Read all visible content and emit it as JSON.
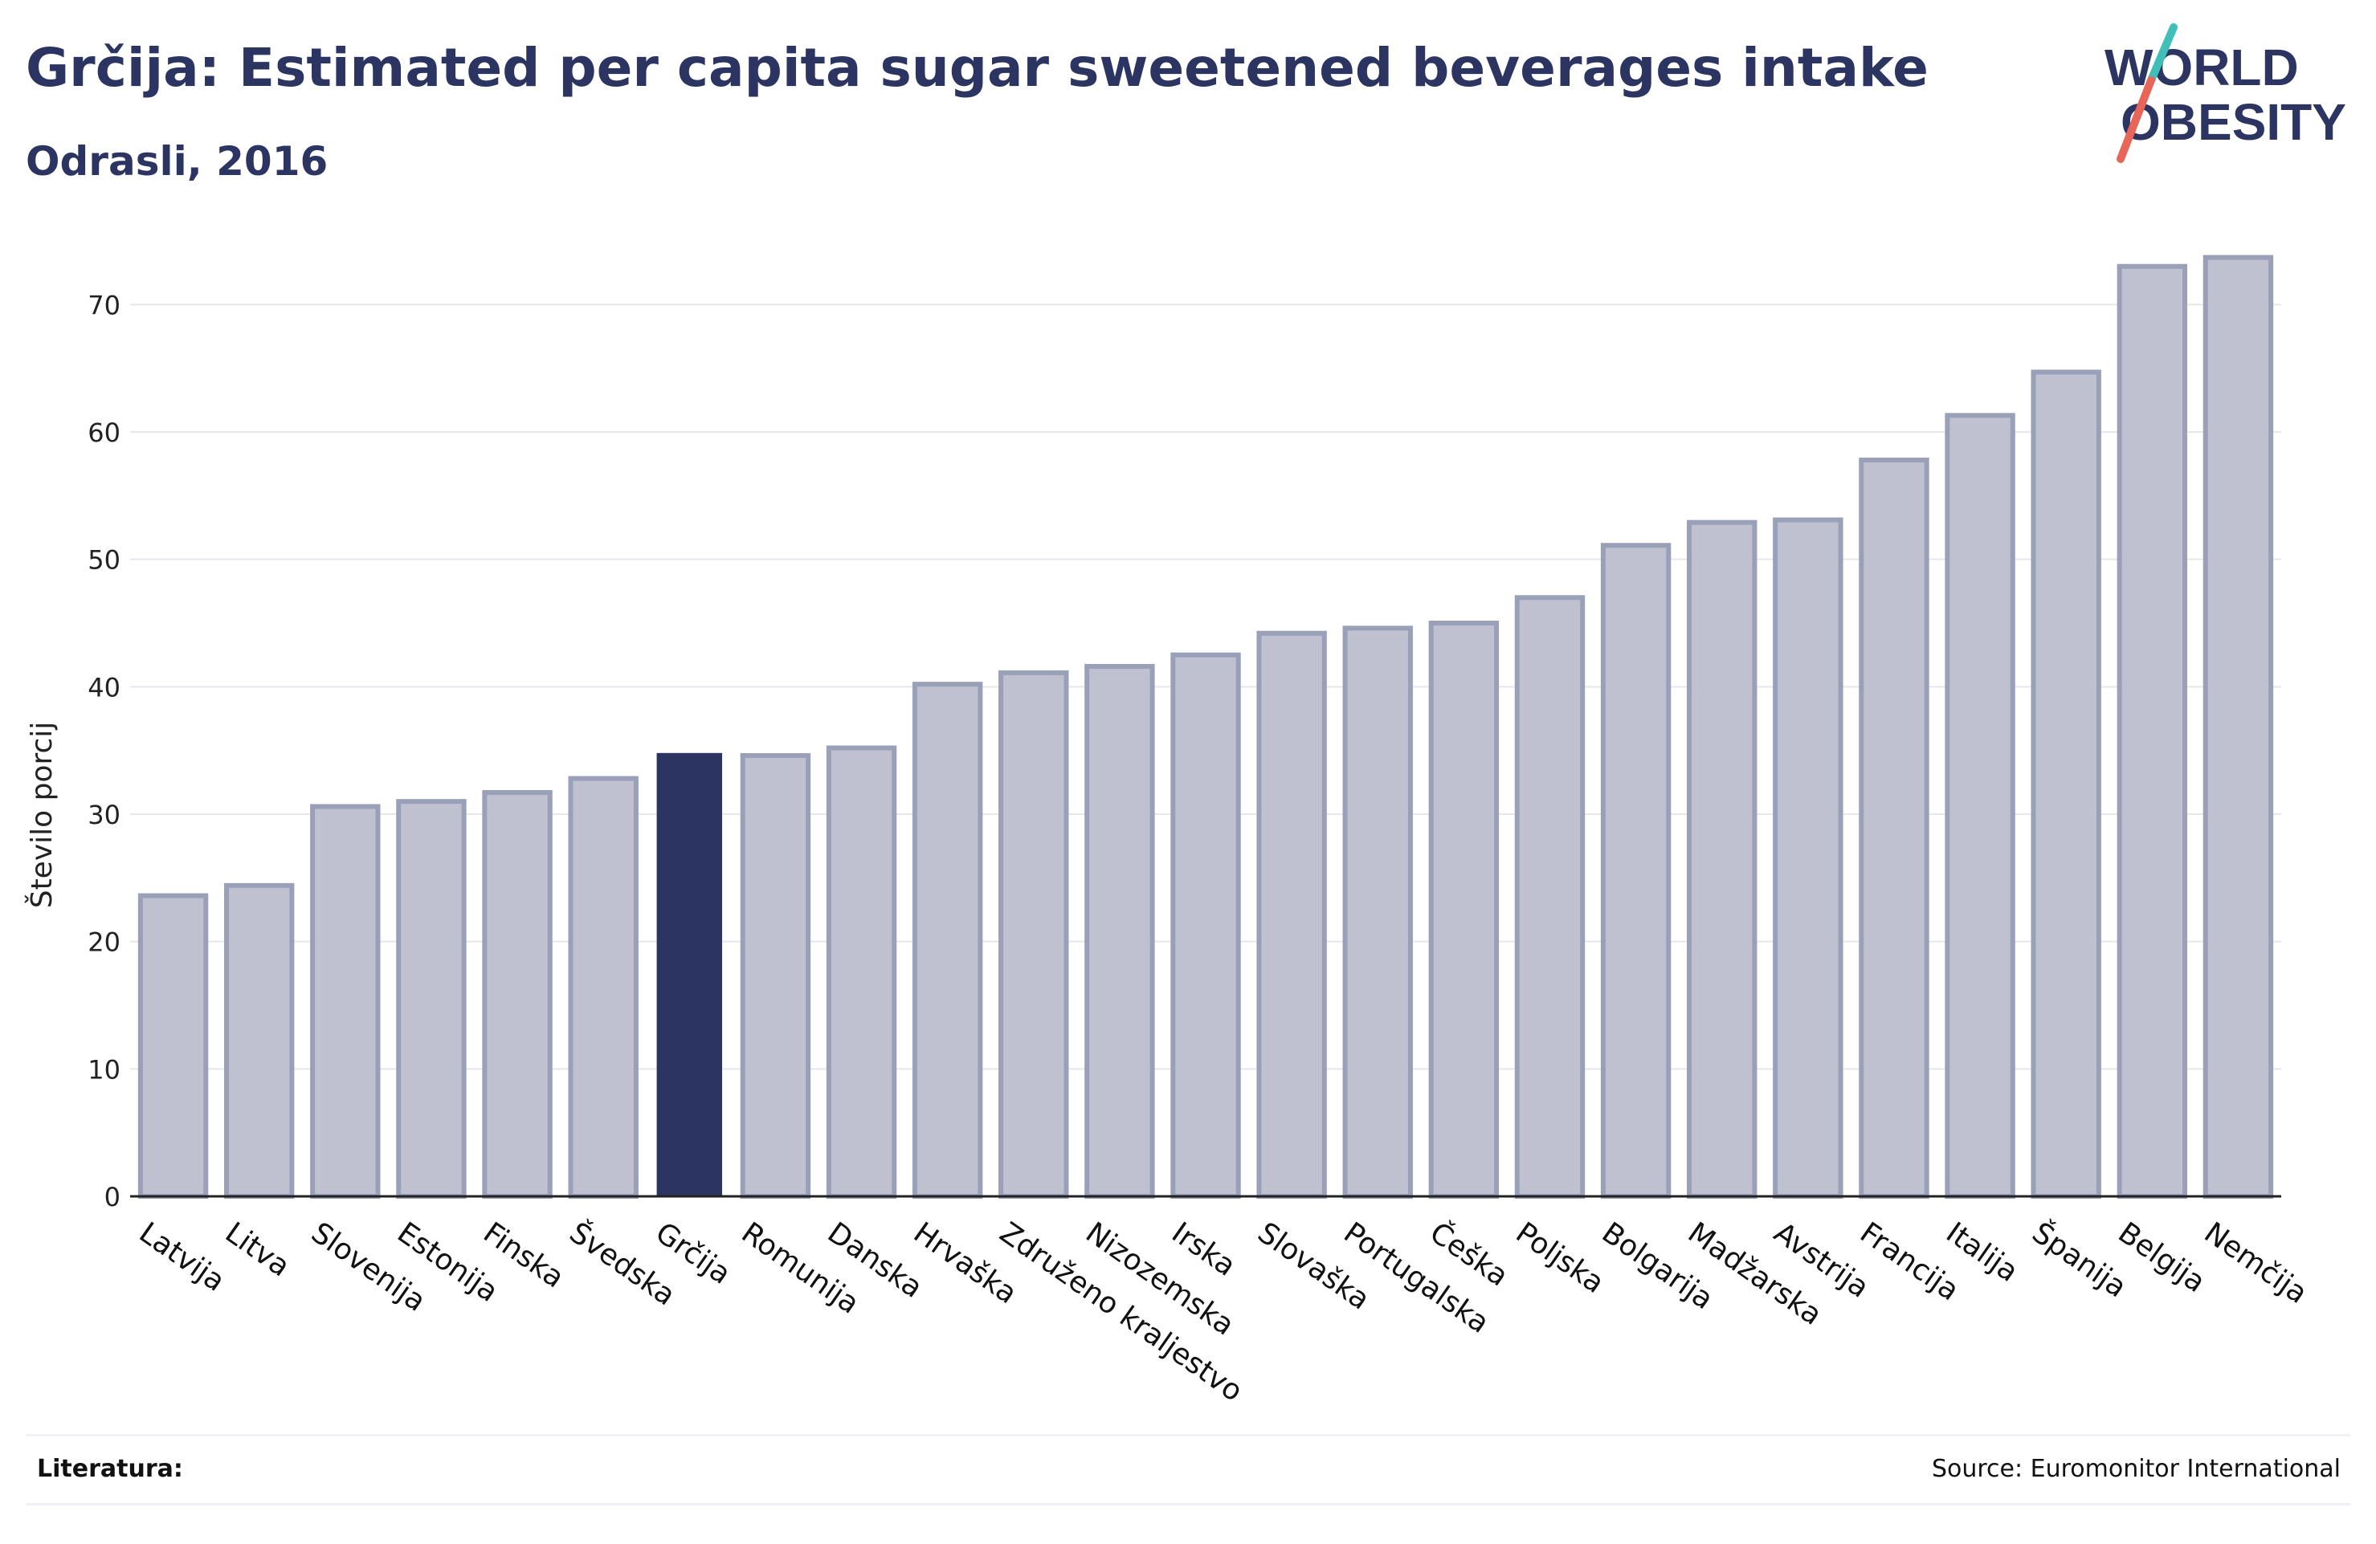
{
  "title": "Grčija: Estimated per capita sugar sweetened beverages intake",
  "subtitle": "Odrasli, 2016",
  "logo": {
    "line1": "WORLD",
    "line2": "OBESITY"
  },
  "footer": {
    "label": "Literatura:",
    "source": "Source: Euromonitor International"
  },
  "colors": {
    "title": "#2c3561",
    "bar_fill": "#bfc1d0",
    "bar_stroke": "#9aa0b8",
    "highlight": "#2c3561",
    "grid": "#e6e6ec",
    "logo_teal": "#3fbfb8",
    "logo_red": "#e8655a"
  },
  "chart_data": {
    "type": "bar",
    "ylabel": "Število porcij",
    "xlabel": "",
    "ylim": [
      0,
      75
    ],
    "yticks": [
      0,
      10,
      20,
      30,
      40,
      50,
      60,
      70
    ],
    "grid": true,
    "highlight": "Grčija",
    "categories": [
      "Latvija",
      "Litva",
      "Slovenija",
      "Estonija",
      "Finska",
      "Švedska",
      "Grčija",
      "Romunija",
      "Danska",
      "Hrvaška",
      "Združeno kraljestvo",
      "Nizozemska",
      "Irska",
      "Slovaška",
      "Portugalska",
      "Češka",
      "Poljska",
      "Bolgarija",
      "Madžarska",
      "Avstrija",
      "Francija",
      "Italija",
      "Španija",
      "Belgija",
      "Nemčija"
    ],
    "values": [
      23.6,
      24.4,
      30.6,
      31.0,
      31.7,
      32.8,
      34.8,
      34.6,
      35.2,
      40.2,
      41.1,
      41.6,
      42.5,
      44.2,
      44.6,
      45.0,
      47.0,
      51.1,
      52.9,
      53.1,
      57.8,
      61.3,
      64.7,
      73.0,
      73.7
    ]
  }
}
